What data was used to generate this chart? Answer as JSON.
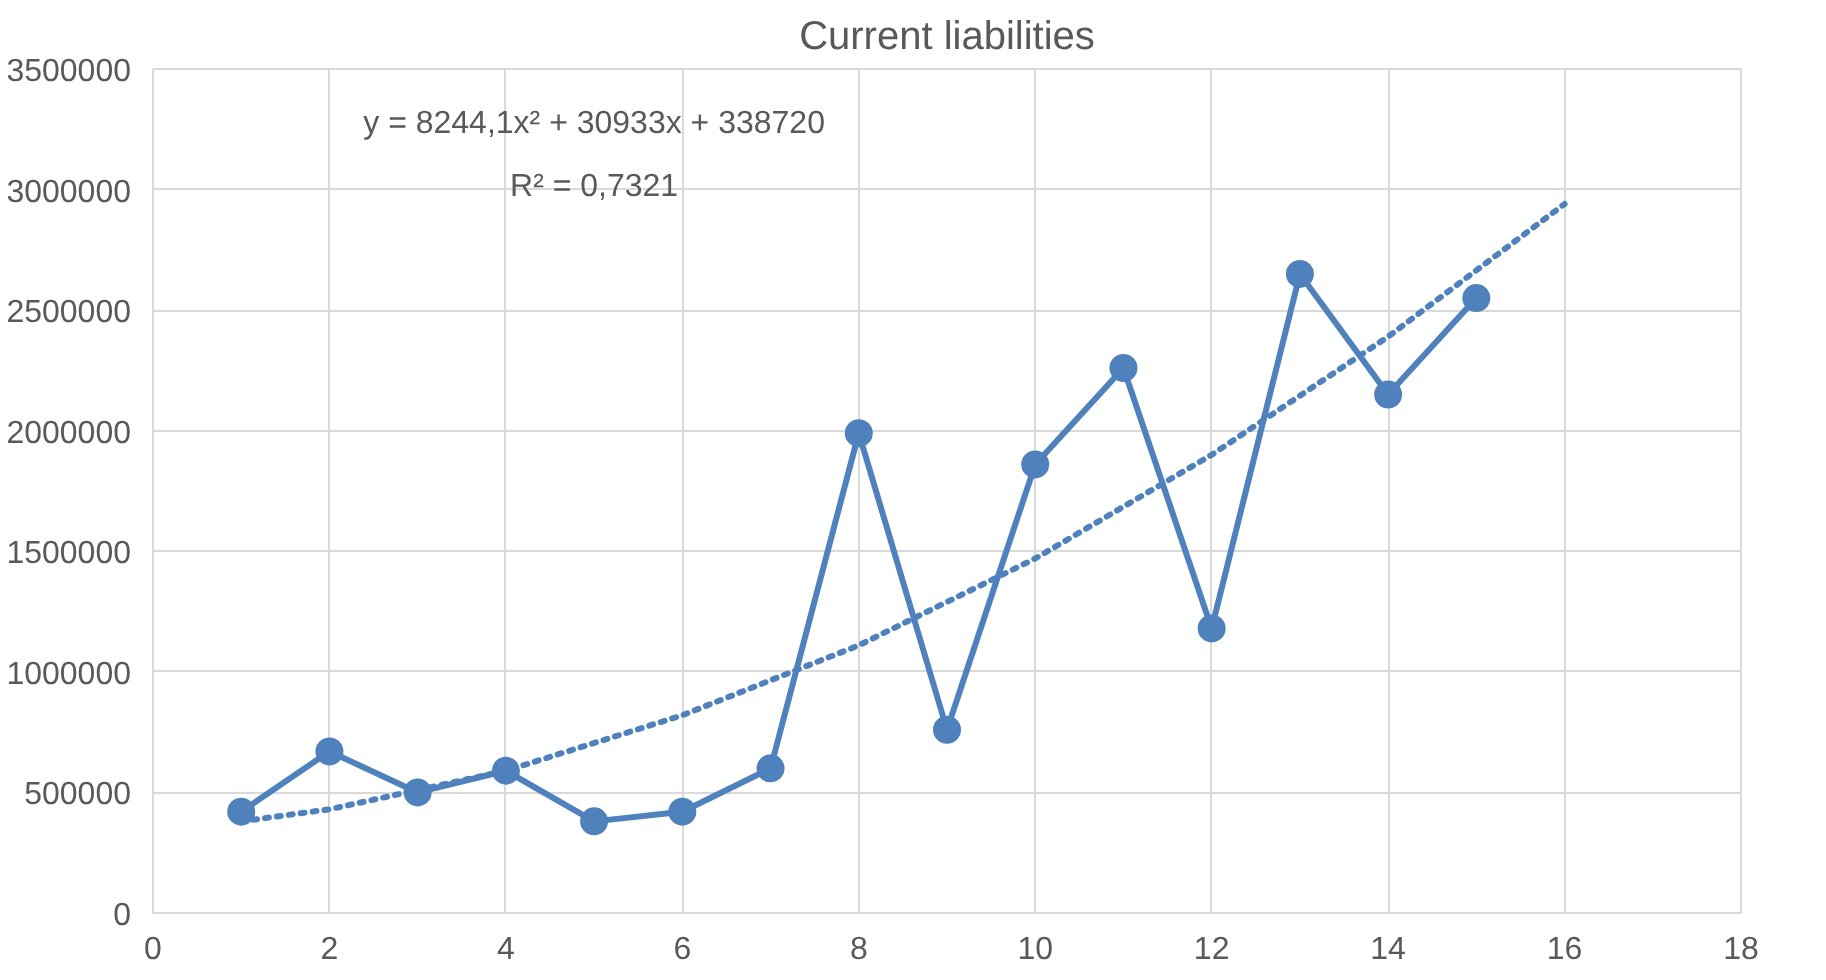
{
  "chart_data": {
    "type": "line",
    "title": "Current liabilities",
    "x": [
      1,
      2,
      3,
      4,
      5,
      6,
      7,
      8,
      9,
      10,
      11,
      12,
      13,
      14,
      15
    ],
    "series": [
      {
        "color": "#4f81bd",
        "marker": "circle",
        "line_style": "solid",
        "values": [
          420000,
          670000,
          500000,
          590000,
          380000,
          420000,
          600000,
          1990000,
          760000,
          1860000,
          2260000,
          1180000,
          2650000,
          2150000,
          2550000
        ]
      },
      {
        "type": "line",
        "color": "#4f81bd",
        "marker": "none",
        "line_style": "dotted",
        "x": [
          1,
          2,
          4,
          6,
          8,
          10,
          12,
          14,
          16
        ],
        "values": [
          380000,
          430000,
          590000,
          820000,
          1110000,
          1470000,
          1900000,
          2390000,
          2940000
        ]
      }
    ],
    "annotations": [
      "y = 8244,1x² + 30933x + 338720",
      "R² = 0,7321"
    ],
    "xlim": [
      0,
      18
    ],
    "xticks": [
      0,
      2,
      4,
      6,
      8,
      10,
      12,
      14,
      16,
      18
    ],
    "ylim": [
      0,
      3500000
    ],
    "yticks": [
      0,
      500000,
      1000000,
      1500000,
      2000000,
      2500000,
      3000000,
      3500000
    ],
    "grid": true
  }
}
